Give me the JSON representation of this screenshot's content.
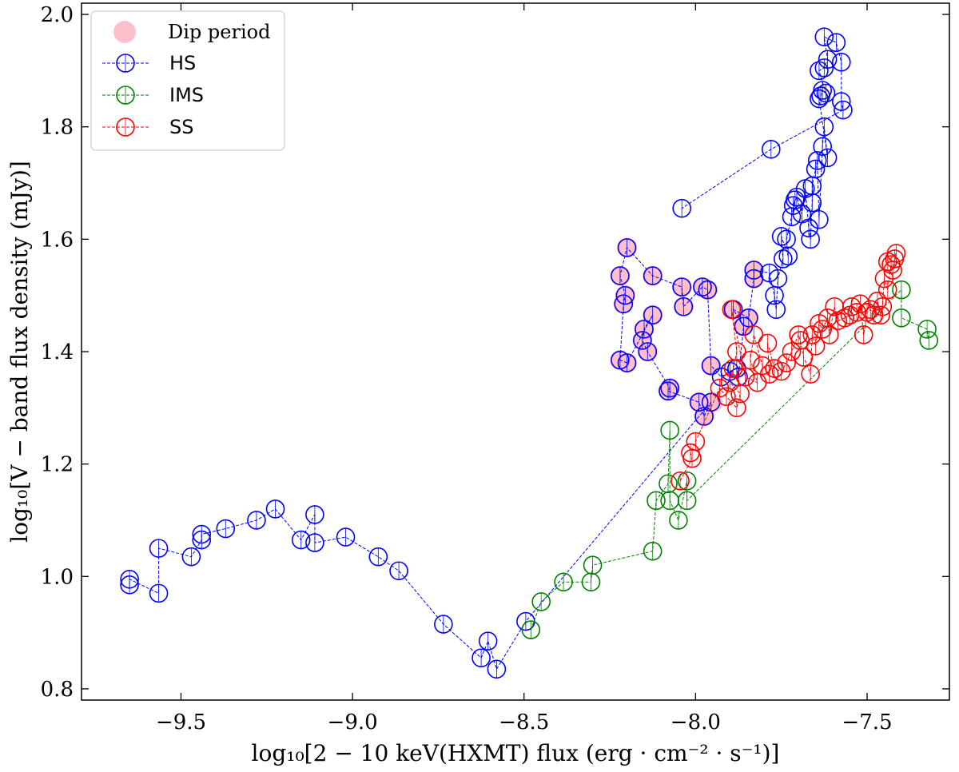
{
  "chart_data": {
    "type": "scatter",
    "title": "",
    "xlabel": "log₁₀[2 − 10 keV(HXMT) flux (erg · cm⁻² · s⁻¹)]",
    "ylabel": "log₁₀[V − band flux density (mJy)]",
    "xlim": [
      -9.79,
      -7.26
    ],
    "ylim": [
      0.78,
      2.02
    ],
    "xticks": [
      -9.5,
      -9.0,
      -8.5,
      -8.0,
      -7.5
    ],
    "xtick_labels": [
      "−9.5",
      "−9.0",
      "−8.5",
      "−8.0",
      "−7.5"
    ],
    "yticks": [
      0.8,
      1.0,
      1.2,
      1.4,
      1.6,
      1.8,
      2.0
    ],
    "ytick_labels": [
      "0.8",
      "1.0",
      "1.2",
      "1.4",
      "1.6",
      "1.8",
      "2.0"
    ],
    "grid": false,
    "legend_position": "top-left",
    "legend": [
      {
        "label": "Dip period",
        "kind": "dip",
        "color": "#ffc0cb"
      },
      {
        "label": "HS",
        "kind": "series",
        "color": "#0000ff"
      },
      {
        "label": "IMS",
        "kind": "series",
        "color": "#008000"
      },
      {
        "label": "SS",
        "kind": "series",
        "color": "#ff0000"
      }
    ],
    "dip_points": [
      [
        -8.2,
        1.585
      ],
      [
        -8.22,
        1.535
      ],
      [
        -8.205,
        1.5
      ],
      [
        -8.21,
        1.485
      ],
      [
        -8.22,
        1.385
      ],
      [
        -8.2,
        1.38
      ],
      [
        -8.15,
        1.44
      ],
      [
        -8.155,
        1.42
      ],
      [
        -8.14,
        1.4
      ],
      [
        -8.125,
        1.465
      ],
      [
        -8.125,
        1.535
      ],
      [
        -8.04,
        1.515
      ],
      [
        -8.035,
        1.48
      ],
      [
        -7.98,
        1.515
      ],
      [
        -7.965,
        1.51
      ],
      [
        -8.075,
        1.335
      ],
      [
        -8.08,
        1.33
      ],
      [
        -7.99,
        1.31
      ],
      [
        -7.975,
        1.285
      ],
      [
        -7.955,
        1.375
      ],
      [
        -7.95,
        1.31
      ],
      [
        -7.89,
        1.475
      ],
      [
        -7.86,
        1.445
      ],
      [
        -7.845,
        1.46
      ],
      [
        -7.83,
        1.53
      ],
      [
        -7.83,
        1.545
      ]
    ],
    "series": [
      {
        "name": "HS",
        "color": "#0000ff",
        "points": [
          [
            -9.65,
            0.985
          ],
          [
            -9.65,
            0.995
          ],
          [
            -9.565,
            0.97
          ],
          [
            -9.565,
            1.05
          ],
          [
            -9.47,
            1.035
          ],
          [
            -9.44,
            1.065
          ],
          [
            -9.44,
            1.075
          ],
          [
            -9.37,
            1.085
          ],
          [
            -9.28,
            1.1
          ],
          [
            -9.225,
            1.12
          ],
          [
            -9.15,
            1.065
          ],
          [
            -9.11,
            1.11
          ],
          [
            -9.11,
            1.06
          ],
          [
            -9.02,
            1.07
          ],
          [
            -8.925,
            1.035
          ],
          [
            -8.865,
            1.01
          ],
          [
            -8.735,
            0.915
          ],
          [
            -8.625,
            0.855
          ],
          [
            -8.605,
            0.885
          ],
          [
            -8.58,
            0.835
          ],
          [
            -8.495,
            0.92
          ],
          [
            -7.955,
            1.31
          ],
          [
            -7.975,
            1.285
          ],
          [
            -7.99,
            1.31
          ],
          [
            -8.08,
            1.33
          ],
          [
            -8.075,
            1.335
          ],
          [
            -8.14,
            1.4
          ],
          [
            -8.155,
            1.42
          ],
          [
            -8.15,
            1.44
          ],
          [
            -8.125,
            1.465
          ],
          [
            -8.2,
            1.38
          ],
          [
            -8.22,
            1.385
          ],
          [
            -8.21,
            1.485
          ],
          [
            -8.205,
            1.5
          ],
          [
            -8.22,
            1.535
          ],
          [
            -8.2,
            1.585
          ],
          [
            -8.125,
            1.535
          ],
          [
            -8.04,
            1.515
          ],
          [
            -8.035,
            1.48
          ],
          [
            -7.98,
            1.515
          ],
          [
            -7.965,
            1.51
          ],
          [
            -7.955,
            1.375
          ],
          [
            -7.925,
            1.355
          ],
          [
            -7.9,
            1.365
          ],
          [
            -7.88,
            1.37
          ],
          [
            -7.875,
            1.355
          ],
          [
            -7.86,
            1.445
          ],
          [
            -7.89,
            1.475
          ],
          [
            -7.845,
            1.46
          ],
          [
            -7.83,
            1.53
          ],
          [
            -7.83,
            1.545
          ],
          [
            -7.785,
            1.54
          ],
          [
            -7.77,
            1.5
          ],
          [
            -7.765,
            1.475
          ],
          [
            -7.76,
            1.53
          ],
          [
            -7.745,
            1.565
          ],
          [
            -7.75,
            1.605
          ],
          [
            -7.73,
            1.57
          ],
          [
            -7.735,
            1.6
          ],
          [
            -7.72,
            1.64
          ],
          [
            -7.71,
            1.67
          ],
          [
            -7.715,
            1.66
          ],
          [
            -7.705,
            1.675
          ],
          [
            -7.69,
            1.645
          ],
          [
            -7.68,
            1.69
          ],
          [
            -7.67,
            1.62
          ],
          [
            -7.665,
            1.6
          ],
          [
            -7.66,
            1.665
          ],
          [
            -7.66,
            1.695
          ],
          [
            -7.65,
            1.725
          ],
          [
            -7.645,
            1.74
          ],
          [
            -7.64,
            1.635
          ],
          [
            -7.63,
            1.765
          ],
          [
            -7.625,
            1.8
          ],
          [
            -7.615,
            1.745
          ],
          [
            -7.64,
            1.85
          ],
          [
            -7.635,
            1.855
          ],
          [
            -7.63,
            1.865
          ],
          [
            -7.62,
            1.86
          ],
          [
            -7.64,
            1.9
          ],
          [
            -7.625,
            1.905
          ],
          [
            -7.615,
            1.92
          ],
          [
            -7.625,
            1.96
          ],
          [
            -7.59,
            1.95
          ],
          [
            -7.575,
            1.915
          ],
          [
            -7.575,
            1.845
          ],
          [
            -7.57,
            1.83
          ],
          [
            -7.78,
            1.76
          ],
          [
            -8.04,
            1.655
          ]
        ]
      },
      {
        "name": "IMS",
        "color": "#008000",
        "points": [
          [
            -8.48,
            0.905
          ],
          [
            -8.45,
            0.955
          ],
          [
            -8.385,
            0.99
          ],
          [
            -8.305,
            0.99
          ],
          [
            -8.3,
            1.02
          ],
          [
            -8.125,
            1.045
          ],
          [
            -8.115,
            1.135
          ],
          [
            -8.08,
            1.165
          ],
          [
            -8.075,
            1.26
          ],
          [
            -8.075,
            1.135
          ],
          [
            -8.05,
            1.1
          ],
          [
            -8.025,
            1.17
          ],
          [
            -8.025,
            1.135
          ],
          [
            -7.4,
            1.51
          ],
          [
            -7.4,
            1.46
          ],
          [
            -7.325,
            1.44
          ],
          [
            -7.32,
            1.42
          ]
        ]
      },
      {
        "name": "SS",
        "color": "#ff0000",
        "points": [
          [
            -8.045,
            1.17
          ],
          [
            -8.01,
            1.21
          ],
          [
            -8.015,
            1.22
          ],
          [
            -8.0,
            1.24
          ],
          [
            -7.93,
            1.335
          ],
          [
            -7.91,
            1.32
          ],
          [
            -7.88,
            1.3
          ],
          [
            -7.87,
            1.325
          ],
          [
            -7.9,
            1.345
          ],
          [
            -7.89,
            1.37
          ],
          [
            -7.88,
            1.4
          ],
          [
            -7.895,
            1.475
          ],
          [
            -7.855,
            1.355
          ],
          [
            -7.82,
            1.345
          ],
          [
            -7.84,
            1.385
          ],
          [
            -7.83,
            1.43
          ],
          [
            -7.805,
            1.375
          ],
          [
            -7.785,
            1.36
          ],
          [
            -7.79,
            1.415
          ],
          [
            -7.77,
            1.37
          ],
          [
            -7.75,
            1.365
          ],
          [
            -7.735,
            1.38
          ],
          [
            -7.72,
            1.4
          ],
          [
            -7.7,
            1.43
          ],
          [
            -7.695,
            1.42
          ],
          [
            -7.685,
            1.39
          ],
          [
            -7.665,
            1.36
          ],
          [
            -7.66,
            1.43
          ],
          [
            -7.65,
            1.41
          ],
          [
            -7.64,
            1.45
          ],
          [
            -7.63,
            1.44
          ],
          [
            -7.615,
            1.46
          ],
          [
            -7.61,
            1.43
          ],
          [
            -7.595,
            1.48
          ],
          [
            -7.585,
            1.455
          ],
          [
            -7.565,
            1.46
          ],
          [
            -7.55,
            1.465
          ],
          [
            -7.545,
            1.48
          ],
          [
            -7.53,
            1.47
          ],
          [
            -7.52,
            1.485
          ],
          [
            -7.51,
            1.43
          ],
          [
            -7.5,
            1.47
          ],
          [
            -7.49,
            1.475
          ],
          [
            -7.48,
            1.465
          ],
          [
            -7.47,
            1.49
          ],
          [
            -7.46,
            1.465
          ],
          [
            -7.455,
            1.48
          ],
          [
            -7.45,
            1.53
          ],
          [
            -7.44,
            1.51
          ],
          [
            -7.43,
            1.555
          ],
          [
            -7.425,
            1.545
          ],
          [
            -7.42,
            1.565
          ],
          [
            -7.415,
            1.575
          ],
          [
            -7.44,
            1.56
          ]
        ]
      }
    ]
  }
}
